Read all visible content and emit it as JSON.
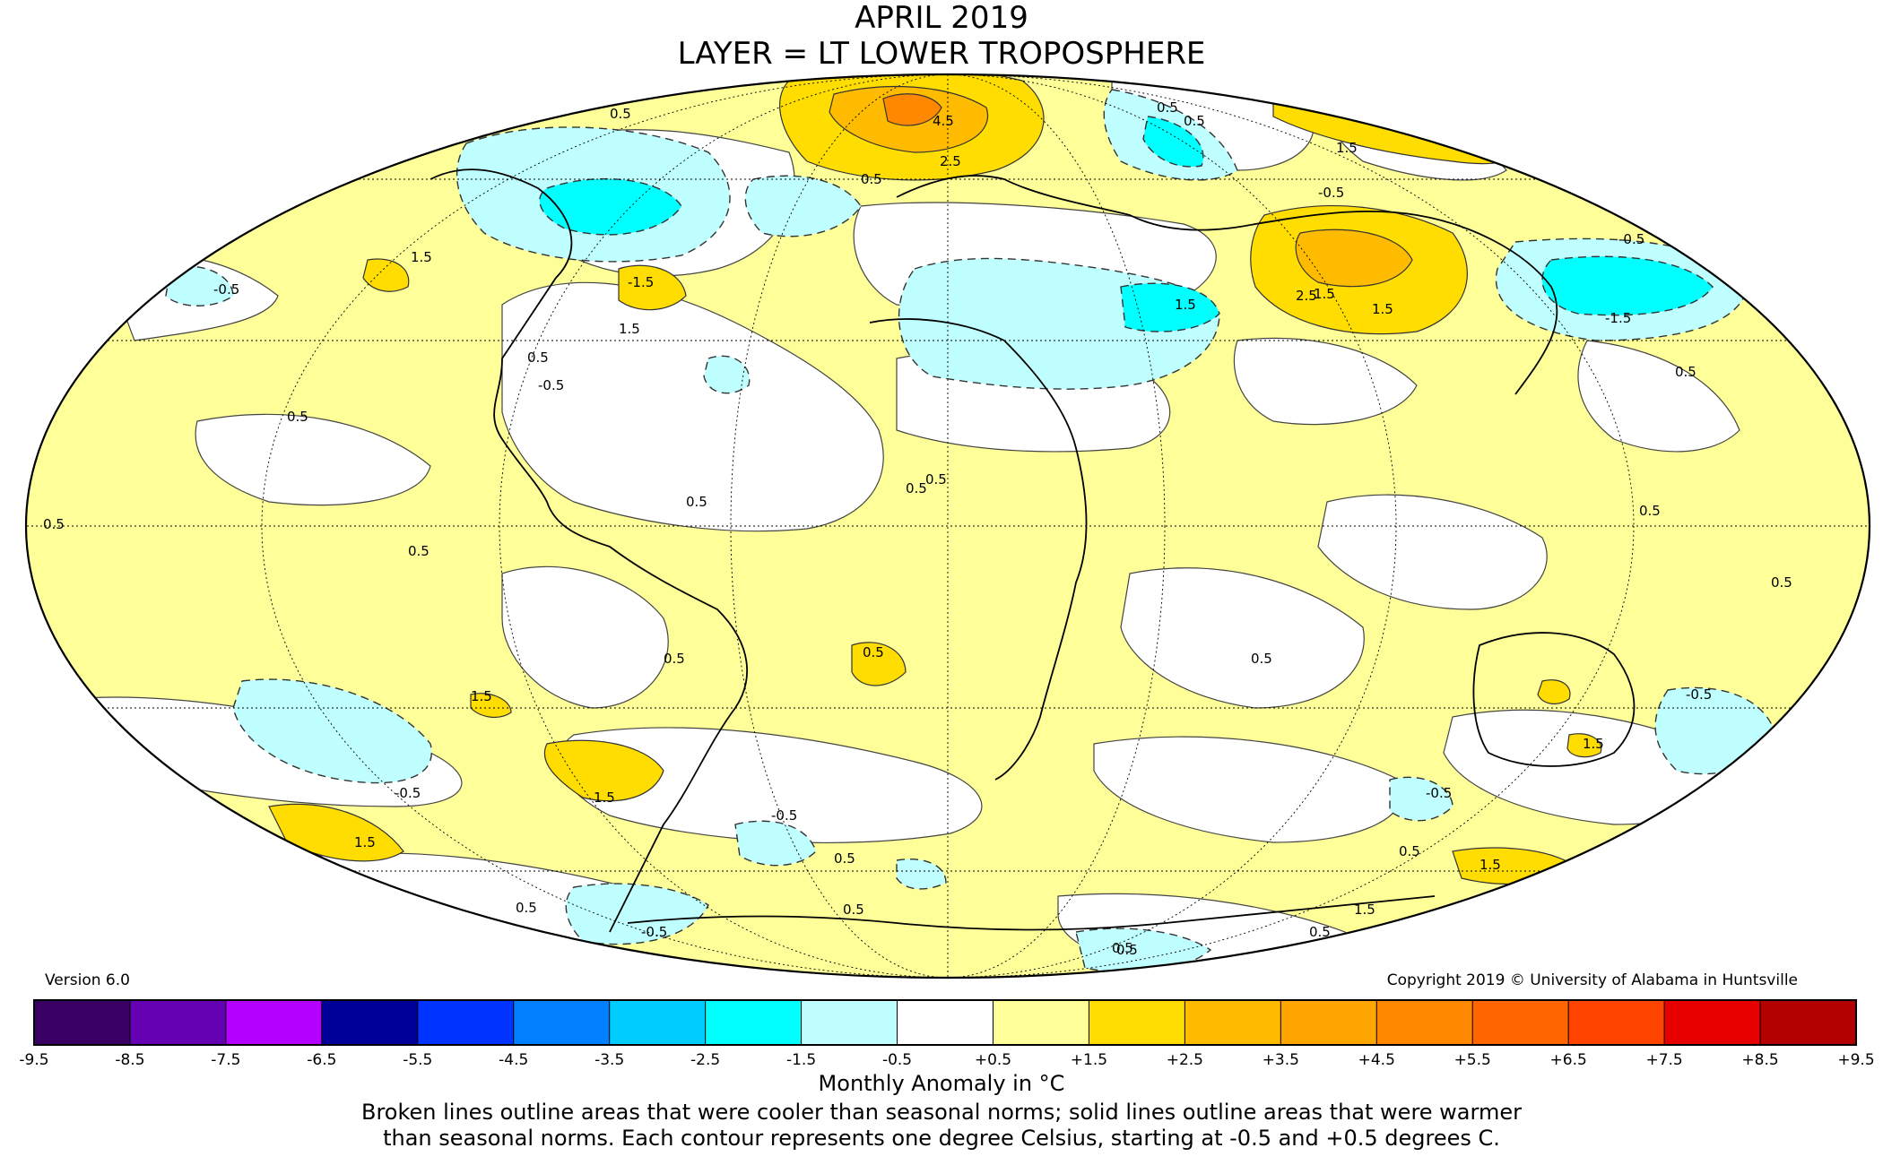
{
  "title": "APRIL 2019",
  "subtitle": "LAYER = LT LOWER TROPOSPHERE",
  "version": "Version 6.0",
  "copyright": "Copyright 2019 © University of Alabama in Huntsville",
  "colorbar": {
    "title": "Monthly Anomaly in °C",
    "ticks": [
      "-9.5",
      "-8.5",
      "-7.5",
      "-6.5",
      "-5.5",
      "-4.5",
      "-3.5",
      "-2.5",
      "-1.5",
      "-0.5",
      "+0.5",
      "+1.5",
      "+2.5",
      "+3.5",
      "+4.5",
      "+5.5",
      "+6.5",
      "+7.5",
      "+8.5",
      "+9.5"
    ],
    "colors": [
      "#3b0066",
      "#6600b3",
      "#b300ff",
      "#000099",
      "#0033ff",
      "#0080ff",
      "#00ccff",
      "#00ffff",
      "#bfffff",
      "#ffffff",
      "#ffff99",
      "#ffdd00",
      "#ffbb00",
      "#ffa500",
      "#ff8800",
      "#ff6600",
      "#ff4400",
      "#e60000",
      "#b30000"
    ]
  },
  "note_line1": "Broken lines outline areas that were cooler than seasonal norms; solid lines outline areas that were warmer",
  "note_line2": "than seasonal norms. Each contour represents one degree Celsius, starting at -0.5 and +0.5 degrees C.",
  "contour_labels": [
    "0.5",
    "1.5",
    "2.5",
    "4.5",
    "-0.5",
    "-1.5",
    "0.5",
    "1.5",
    "0.5",
    "-0.5",
    "1.5",
    "0.5",
    "0.5",
    "0.5",
    "0.5",
    "0.5",
    "1.5",
    "0.5",
    "1.5",
    "-0.5",
    "1.5",
    "0.5",
    "-0.5",
    "0.5",
    "0.5",
    "-0.5",
    "0.5",
    "0.5",
    "-0.5",
    "1.5",
    "0.5",
    "1.5",
    "0.5",
    "0.5",
    "-0.5",
    "-0.5",
    "1.5",
    "0.5",
    "0.5",
    "2.5",
    "1.5",
    "-0.5",
    "-1.5",
    "0.5",
    "0.5",
    "0.5",
    "0.5",
    "1.5",
    "1.5",
    "0.5"
  ],
  "anomaly_palette": {
    "cool_light": "#bfffff",
    "cool_strong": "#00ffff",
    "warm_light": "#ffff99",
    "warm_mid": "#ffdd00",
    "warm_high": "#ffbb00",
    "warm_peak": "#ff8800"
  }
}
